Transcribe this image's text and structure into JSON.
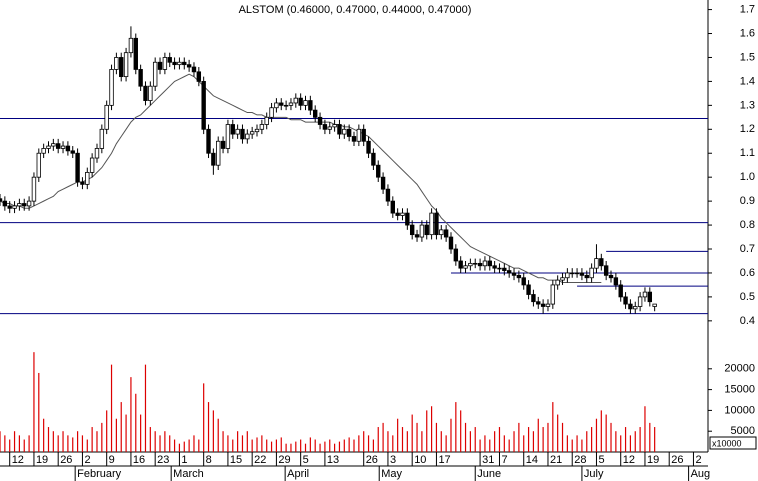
{
  "chart_data": {
    "type": "candlestick",
    "title": "ALSTOM (0.46000, 0.47000, 0.44000, 0.47000)",
    "x": [
      0,
      1,
      2,
      3,
      4,
      5,
      6,
      7,
      8,
      9,
      10,
      11,
      12,
      13,
      14,
      15,
      16,
      17,
      18,
      19,
      20,
      21,
      22,
      23,
      24,
      25,
      26,
      27,
      28,
      29,
      30,
      31,
      32,
      33,
      34,
      35,
      36,
      37,
      38,
      39,
      40,
      41,
      42,
      43,
      44,
      45,
      46,
      47,
      48,
      49,
      50,
      51,
      52,
      53,
      54,
      55,
      56,
      57,
      58,
      59,
      60,
      61,
      62,
      63,
      64,
      65,
      66,
      67,
      68,
      69,
      70,
      71,
      72,
      73,
      74,
      75,
      76,
      77,
      78,
      79,
      80,
      81,
      82,
      83,
      84,
      85,
      86,
      87,
      88,
      89,
      90,
      91,
      92,
      93,
      94,
      95,
      96,
      97,
      98,
      99,
      100,
      101,
      102,
      103,
      104,
      105,
      106,
      107,
      108,
      109,
      110,
      111,
      112,
      113,
      114,
      115,
      116,
      117,
      118,
      119,
      120,
      121,
      122,
      123,
      124,
      125,
      126,
      127,
      128,
      129,
      130,
      131,
      132,
      133,
      134,
      135
    ],
    "open": [
      0.91,
      0.9,
      0.88,
      0.87,
      0.88,
      0.89,
      0.88,
      0.9,
      1.0,
      1.1,
      1.12,
      1.13,
      1.14,
      1.12,
      1.13,
      1.11,
      1.1,
      0.98,
      0.97,
      1.02,
      1.08,
      1.12,
      1.2,
      1.3,
      1.45,
      1.5,
      1.42,
      1.52,
      1.58,
      1.45,
      1.38,
      1.32,
      1.38,
      1.48,
      1.45,
      1.5,
      1.48,
      1.47,
      1.48,
      1.47,
      1.46,
      1.44,
      1.4,
      1.2,
      1.1,
      1.05,
      1.15,
      1.12,
      1.22,
      1.18,
      1.2,
      1.16,
      1.18,
      1.19,
      1.2,
      1.22,
      1.25,
      1.29,
      1.31,
      1.3,
      1.3,
      1.31,
      1.33,
      1.3,
      1.32,
      1.28,
      1.25,
      1.22,
      1.2,
      1.21,
      1.22,
      1.18,
      1.2,
      1.17,
      1.15,
      1.2,
      1.15,
      1.1,
      1.05,
      1.0,
      0.95,
      0.9,
      0.85,
      0.84,
      0.85,
      0.8,
      0.76,
      0.75,
      0.8,
      0.76,
      0.85,
      0.76,
      0.78,
      0.75,
      0.7,
      0.65,
      0.62,
      0.63,
      0.64,
      0.64,
      0.63,
      0.65,
      0.63,
      0.62,
      0.62,
      0.61,
      0.6,
      0.59,
      0.58,
      0.55,
      0.51,
      0.48,
      0.47,
      0.46,
      0.47,
      0.55,
      0.57,
      0.58,
      0.6,
      0.6,
      0.6,
      0.59,
      0.58,
      0.62,
      0.66,
      0.63,
      0.59,
      0.58,
      0.55,
      0.5,
      0.47,
      0.45,
      0.46,
      0.5,
      0.52,
      0.46
    ],
    "high": [
      0.93,
      0.92,
      0.9,
      0.9,
      0.91,
      0.91,
      0.92,
      1.02,
      1.12,
      1.14,
      1.15,
      1.16,
      1.16,
      1.15,
      1.15,
      1.13,
      1.12,
      1.0,
      1.04,
      1.1,
      1.14,
      1.22,
      1.32,
      1.47,
      1.52,
      1.52,
      1.54,
      1.63,
      1.6,
      1.47,
      1.4,
      1.4,
      1.5,
      1.5,
      1.52,
      1.52,
      1.5,
      1.5,
      1.5,
      1.49,
      1.48,
      1.46,
      1.42,
      1.22,
      1.12,
      1.17,
      1.17,
      1.24,
      1.24,
      1.22,
      1.22,
      1.2,
      1.21,
      1.22,
      1.24,
      1.27,
      1.31,
      1.33,
      1.33,
      1.32,
      1.33,
      1.35,
      1.35,
      1.34,
      1.34,
      1.3,
      1.27,
      1.24,
      1.23,
      1.24,
      1.24,
      1.22,
      1.22,
      1.19,
      1.22,
      1.22,
      1.17,
      1.12,
      1.07,
      1.02,
      0.97,
      0.92,
      0.87,
      0.87,
      0.87,
      0.82,
      0.78,
      0.82,
      0.82,
      0.87,
      0.87,
      0.8,
      0.8,
      0.77,
      0.72,
      0.67,
      0.65,
      0.66,
      0.66,
      0.66,
      0.67,
      0.67,
      0.65,
      0.64,
      0.64,
      0.63,
      0.62,
      0.61,
      0.6,
      0.57,
      0.53,
      0.5,
      0.49,
      0.49,
      0.57,
      0.59,
      0.6,
      0.62,
      0.62,
      0.62,
      0.62,
      0.61,
      0.64,
      0.72,
      0.68,
      0.65,
      0.61,
      0.6,
      0.57,
      0.52,
      0.49,
      0.48,
      0.52,
      0.54,
      0.54,
      0.47
    ],
    "low": [
      0.88,
      0.86,
      0.85,
      0.85,
      0.86,
      0.86,
      0.86,
      0.88,
      0.98,
      1.08,
      1.1,
      1.11,
      1.1,
      1.1,
      1.09,
      1.08,
      0.96,
      0.95,
      0.95,
      1.0,
      1.06,
      1.1,
      1.18,
      1.28,
      1.43,
      1.4,
      1.4,
      1.5,
      1.43,
      1.36,
      1.3,
      1.3,
      1.36,
      1.43,
      1.43,
      1.46,
      1.45,
      1.45,
      1.45,
      1.44,
      1.42,
      1.38,
      1.18,
      1.08,
      1.01,
      1.03,
      1.1,
      1.1,
      1.16,
      1.16,
      1.14,
      1.14,
      1.16,
      1.17,
      1.18,
      1.2,
      1.23,
      1.27,
      1.28,
      1.28,
      1.28,
      1.29,
      1.28,
      1.28,
      1.26,
      1.23,
      1.2,
      1.18,
      1.18,
      1.19,
      1.16,
      1.16,
      1.15,
      1.13,
      1.13,
      1.13,
      1.08,
      1.03,
      0.98,
      0.93,
      0.88,
      0.83,
      0.82,
      0.82,
      0.78,
      0.74,
      0.73,
      0.73,
      0.74,
      0.74,
      0.74,
      0.74,
      0.73,
      0.68,
      0.63,
      0.6,
      0.6,
      0.61,
      0.62,
      0.61,
      0.61,
      0.61,
      0.6,
      0.6,
      0.59,
      0.58,
      0.57,
      0.56,
      0.53,
      0.49,
      0.46,
      0.45,
      0.43,
      0.44,
      0.45,
      0.53,
      0.55,
      0.56,
      0.58,
      0.58,
      0.57,
      0.56,
      0.56,
      0.6,
      0.61,
      0.57,
      0.56,
      0.53,
      0.48,
      0.45,
      0.43,
      0.43,
      0.44,
      0.48,
      0.46,
      0.44
    ],
    "close": [
      0.9,
      0.88,
      0.87,
      0.88,
      0.89,
      0.88,
      0.9,
      1.0,
      1.1,
      1.12,
      1.13,
      1.14,
      1.12,
      1.13,
      1.11,
      1.1,
      0.98,
      0.97,
      1.02,
      1.08,
      1.12,
      1.2,
      1.3,
      1.45,
      1.5,
      1.42,
      1.52,
      1.58,
      1.45,
      1.38,
      1.32,
      1.38,
      1.48,
      1.45,
      1.5,
      1.48,
      1.47,
      1.48,
      1.47,
      1.46,
      1.44,
      1.4,
      1.2,
      1.1,
      1.05,
      1.15,
      1.12,
      1.22,
      1.18,
      1.2,
      1.16,
      1.18,
      1.19,
      1.2,
      1.22,
      1.25,
      1.29,
      1.31,
      1.3,
      1.3,
      1.31,
      1.33,
      1.3,
      1.32,
      1.28,
      1.25,
      1.22,
      1.2,
      1.21,
      1.22,
      1.18,
      1.2,
      1.17,
      1.15,
      1.2,
      1.15,
      1.1,
      1.05,
      1.0,
      0.95,
      0.9,
      0.85,
      0.84,
      0.85,
      0.8,
      0.76,
      0.75,
      0.8,
      0.76,
      0.85,
      0.76,
      0.78,
      0.75,
      0.7,
      0.65,
      0.62,
      0.63,
      0.64,
      0.64,
      0.63,
      0.65,
      0.63,
      0.62,
      0.62,
      0.61,
      0.6,
      0.59,
      0.58,
      0.55,
      0.51,
      0.48,
      0.47,
      0.46,
      0.47,
      0.55,
      0.57,
      0.58,
      0.6,
      0.6,
      0.6,
      0.59,
      0.58,
      0.62,
      0.66,
      0.63,
      0.59,
      0.58,
      0.55,
      0.5,
      0.47,
      0.45,
      0.46,
      0.5,
      0.52,
      0.48,
      0.47
    ],
    "volume": [
      5000,
      4000,
      3000,
      5000,
      4000,
      3000,
      4000,
      24000,
      19000,
      8000,
      6000,
      5000,
      4000,
      5000,
      4000,
      3500,
      5000,
      4000,
      3000,
      6000,
      5000,
      7000,
      10000,
      21000,
      8000,
      12000,
      9000,
      18000,
      14000,
      9000,
      21000,
      6000,
      5000,
      4000,
      5000,
      4000,
      3000,
      2000,
      2500,
      3000,
      4000,
      3000,
      16500,
      12000,
      10000,
      8000,
      5000,
      4000,
      3000,
      5000,
      4000,
      5000,
      3000,
      3500,
      4000,
      3000,
      2500,
      3000,
      3500,
      2000,
      2000,
      2500,
      3000,
      2000,
      3500,
      3000,
      2000,
      2500,
      3000,
      2000,
      2500,
      3000,
      3500,
      3000,
      4000,
      5000,
      4000,
      3000,
      6000,
      7000,
      5000,
      4000,
      8000,
      6000,
      5000,
      9000,
      7000,
      5000,
      10000,
      11000,
      7000,
      5000,
      4000,
      8000,
      12000,
      10000,
      7000,
      5000,
      6000,
      3000,
      4000,
      3000,
      5000,
      6000,
      4000,
      3000,
      5000,
      7000,
      4000,
      6000,
      5000,
      8000,
      6000,
      7000,
      12000,
      9000,
      7000,
      4000,
      3000,
      4000,
      3000,
      5000,
      6000,
      8000,
      10000,
      9000,
      7000,
      5000,
      4000,
      6000,
      4000,
      5000,
      6000,
      11000,
      7000,
      6000
    ],
    "ma": [
      0.9,
      0.89,
      0.89,
      0.88,
      0.88,
      0.87,
      0.87,
      0.88,
      0.89,
      0.9,
      0.91,
      0.92,
      0.94,
      0.95,
      0.96,
      0.97,
      0.98,
      0.98,
      0.99,
      1.0,
      1.02,
      1.04,
      1.07,
      1.1,
      1.14,
      1.17,
      1.2,
      1.23,
      1.25,
      1.26,
      1.28,
      1.3,
      1.32,
      1.34,
      1.36,
      1.38,
      1.4,
      1.41,
      1.42,
      1.43,
      1.42,
      1.4,
      1.38,
      1.36,
      1.34,
      1.33,
      1.32,
      1.31,
      1.3,
      1.29,
      1.28,
      1.27,
      1.27,
      1.26,
      1.26,
      1.25,
      1.25,
      1.25,
      1.25,
      1.25,
      1.24,
      1.24,
      1.24,
      1.23,
      1.23,
      1.23,
      1.23,
      1.23,
      1.23,
      1.22,
      1.22,
      1.21,
      1.21,
      1.2,
      1.19,
      1.18,
      1.17,
      1.15,
      1.13,
      1.11,
      1.09,
      1.07,
      1.05,
      1.03,
      1.01,
      0.99,
      0.97,
      0.94,
      0.91,
      0.88,
      0.86,
      0.83,
      0.81,
      0.79,
      0.77,
      0.75,
      0.73,
      0.71,
      0.7,
      0.69,
      0.68,
      0.67,
      0.66,
      0.65,
      0.64,
      0.63,
      0.62,
      0.62,
      0.61,
      0.6,
      0.59,
      0.58,
      0.58,
      0.57,
      0.57,
      0.57,
      0.56,
      0.56,
      0.56,
      0.56,
      0.56,
      0.56,
      0.56,
      0.56,
      0.56,
      null,
      null,
      null,
      null,
      null,
      null,
      null,
      null,
      null,
      null,
      null
    ],
    "xlim": [
      0,
      146
    ],
    "ylim": [
      0.32,
      1.74
    ],
    "yticks": [
      0.4,
      0.5,
      0.6,
      0.7,
      0.8,
      0.9,
      {
        "value": 1,
        "label": "1.0"
      },
      1.1,
      1.2,
      1.3,
      1.4,
      1.5,
      1.6,
      1.7
    ],
    "volume_ylim": [
      0,
      25000
    ],
    "volume_yticks": [
      5000,
      10000,
      15000,
      20000
    ],
    "volume_unit": "x10000",
    "xticks": [
      {
        "value": 2,
        "label": "12"
      },
      {
        "value": 7,
        "label": "19"
      },
      {
        "value": 12,
        "label": "26"
      },
      {
        "value": 17,
        "label": "2"
      },
      {
        "value": 22,
        "label": "9"
      },
      {
        "value": 27,
        "label": "16"
      },
      {
        "value": 32,
        "label": "23"
      },
      {
        "value": 37,
        "label": "1"
      },
      {
        "value": 42,
        "label": "8"
      },
      {
        "value": 47,
        "label": "15"
      },
      {
        "value": 52,
        "label": "22"
      },
      {
        "value": 57,
        "label": "29"
      },
      {
        "value": 62,
        "label": "5"
      },
      {
        "value": 67,
        "label": "13"
      },
      {
        "value": 75,
        "label": "26"
      },
      {
        "value": 80,
        "label": "3"
      },
      {
        "value": 85,
        "label": "10"
      },
      {
        "value": 90,
        "label": "17"
      },
      {
        "value": 99,
        "label": "31"
      },
      {
        "value": 103,
        "label": "7"
      },
      {
        "value": 108,
        "label": "14"
      },
      {
        "value": 113,
        "label": "21"
      },
      {
        "value": 118,
        "label": "28"
      },
      {
        "value": 123,
        "label": "5"
      },
      {
        "value": 128,
        "label": "12"
      },
      {
        "value": 133,
        "label": "19"
      },
      {
        "value": 138,
        "label": "26"
      },
      {
        "value": 143,
        "label": "2"
      }
    ],
    "months": [
      {
        "value": 15.5,
        "label": "February"
      },
      {
        "value": 35.3,
        "label": "March"
      },
      {
        "value": 58.8,
        "label": "April"
      },
      {
        "value": 78.2,
        "label": "May"
      },
      {
        "value": 98,
        "label": "June"
      },
      {
        "value": 120,
        "label": "July"
      },
      {
        "value": 142,
        "label": "Aug"
      }
    ],
    "hlines": [
      {
        "y": 1.245
      },
      {
        "y": 0.81
      },
      {
        "y": 0.43
      },
      {
        "y": 0.69,
        "x0": 125
      },
      {
        "y": 0.6,
        "x0": 93
      },
      {
        "y": 0.545,
        "x0": 119
      }
    ],
    "colors": {
      "up": "#ffffff",
      "down": "#000000",
      "volume": "#dd0000",
      "ma": "#555555",
      "hline": "#000080"
    }
  }
}
